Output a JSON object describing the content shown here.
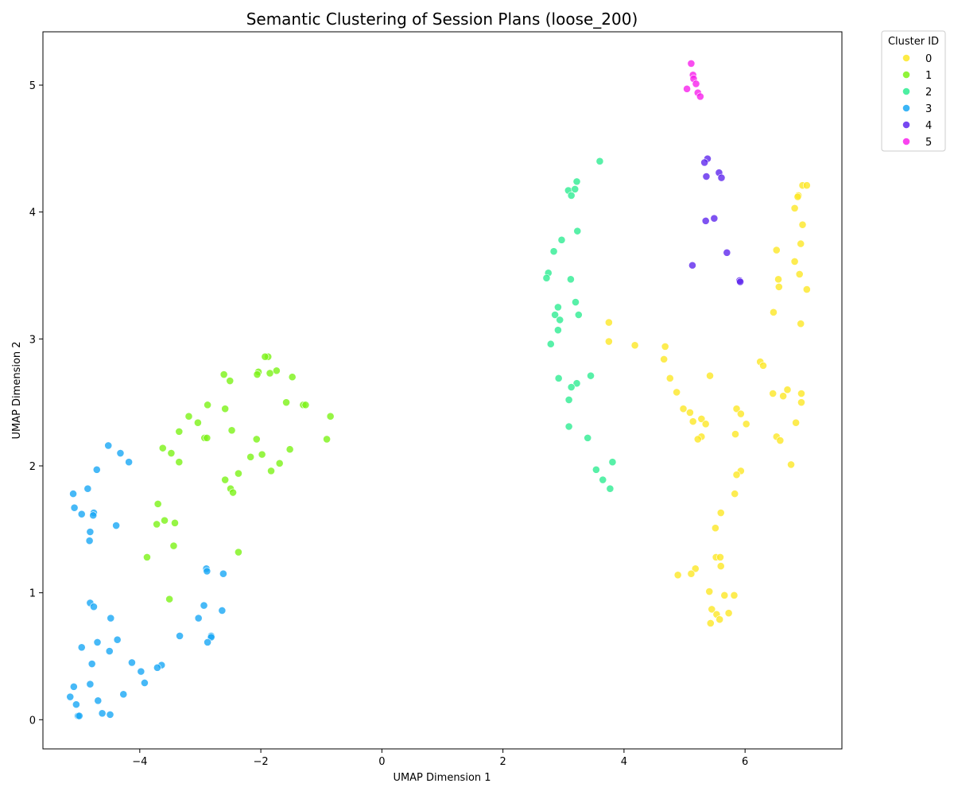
{
  "chart_data": {
    "type": "scatter",
    "title": "Semantic Clustering of Session Plans (loose_200)",
    "xlabel": "UMAP Dimension 1",
    "ylabel": "UMAP Dimension 2",
    "xlim": [
      -5.6,
      7.6
    ],
    "ylim": [
      -0.23,
      5.42
    ],
    "xticks": [
      -4,
      -2,
      0,
      2,
      4,
      6
    ],
    "yticks": [
      0,
      1,
      2,
      3,
      4,
      5
    ],
    "grid": false,
    "legend": {
      "title": "Cluster ID",
      "placement": "outside-top-right"
    },
    "series": [
      {
        "name": "0",
        "color": "#fde725",
        "points": [
          [
            6.95,
            4.21
          ],
          [
            7.02,
            4.21
          ],
          [
            6.88,
            4.13
          ],
          [
            6.87,
            4.12
          ],
          [
            6.82,
            4.03
          ],
          [
            6.95,
            3.9
          ],
          [
            6.92,
            3.75
          ],
          [
            6.52,
            3.7
          ],
          [
            6.82,
            3.61
          ],
          [
            6.9,
            3.51
          ],
          [
            6.55,
            3.47
          ],
          [
            6.56,
            3.41
          ],
          [
            7.02,
            3.39
          ],
          [
            6.47,
            3.21
          ],
          [
            6.92,
            3.12
          ],
          [
            3.75,
            3.13
          ],
          [
            3.75,
            2.98
          ],
          [
            4.18,
            2.95
          ],
          [
            4.68,
            2.94
          ],
          [
            4.66,
            2.84
          ],
          [
            6.25,
            2.82
          ],
          [
            6.3,
            2.79
          ],
          [
            4.76,
            2.69
          ],
          [
            5.42,
            2.71
          ],
          [
            6.7,
            2.6
          ],
          [
            4.87,
            2.58
          ],
          [
            6.93,
            2.57
          ],
          [
            6.46,
            2.57
          ],
          [
            6.63,
            2.55
          ],
          [
            6.93,
            2.5
          ],
          [
            5.86,
            2.45
          ],
          [
            4.98,
            2.45
          ],
          [
            5.09,
            2.42
          ],
          [
            5.93,
            2.41
          ],
          [
            5.14,
            2.35
          ],
          [
            5.28,
            2.37
          ],
          [
            6.84,
            2.34
          ],
          [
            5.35,
            2.33
          ],
          [
            6.02,
            2.33
          ],
          [
            5.84,
            2.25
          ],
          [
            5.28,
            2.23
          ],
          [
            5.22,
            2.21
          ],
          [
            6.52,
            2.23
          ],
          [
            6.58,
            2.2
          ],
          [
            6.76,
            2.01
          ],
          [
            5.93,
            1.96
          ],
          [
            5.86,
            1.93
          ],
          [
            5.83,
            1.78
          ],
          [
            5.6,
            1.63
          ],
          [
            5.51,
            1.51
          ],
          [
            5.52,
            1.28
          ],
          [
            5.59,
            1.28
          ],
          [
            5.6,
            1.21
          ],
          [
            5.18,
            1.19
          ],
          [
            5.11,
            1.15
          ],
          [
            4.89,
            1.14
          ],
          [
            5.41,
            1.01
          ],
          [
            5.66,
            0.98
          ],
          [
            5.82,
            0.98
          ],
          [
            5.45,
            0.87
          ],
          [
            5.53,
            0.83
          ],
          [
            5.73,
            0.84
          ],
          [
            5.58,
            0.79
          ],
          [
            5.43,
            0.76
          ]
        ]
      },
      {
        "name": "1",
        "color": "#7cf216",
        "points": [
          [
            -1.88,
            2.86
          ],
          [
            -1.93,
            2.86
          ],
          [
            -1.74,
            2.75
          ],
          [
            -1.85,
            2.73
          ],
          [
            -2.04,
            2.74
          ],
          [
            -2.06,
            2.72
          ],
          [
            -2.61,
            2.72
          ],
          [
            -1.48,
            2.7
          ],
          [
            -2.51,
            2.67
          ],
          [
            -1.58,
            2.5
          ],
          [
            -1.3,
            2.48
          ],
          [
            -1.26,
            2.48
          ],
          [
            -2.88,
            2.48
          ],
          [
            -0.85,
            2.39
          ],
          [
            -3.19,
            2.39
          ],
          [
            -2.59,
            2.45
          ],
          [
            -3.04,
            2.34
          ],
          [
            -3.35,
            2.27
          ],
          [
            -2.48,
            2.28
          ],
          [
            -2.93,
            2.22
          ],
          [
            -2.89,
            2.22
          ],
          [
            -2.07,
            2.21
          ],
          [
            -0.91,
            2.21
          ],
          [
            -3.62,
            2.14
          ],
          [
            -1.52,
            2.13
          ],
          [
            -3.48,
            2.1
          ],
          [
            -1.98,
            2.09
          ],
          [
            -2.17,
            2.07
          ],
          [
            -3.35,
            2.03
          ],
          [
            -1.69,
            2.02
          ],
          [
            -1.83,
            1.96
          ],
          [
            -2.37,
            1.94
          ],
          [
            -2.59,
            1.89
          ],
          [
            -2.5,
            1.82
          ],
          [
            -2.46,
            1.79
          ],
          [
            -3.7,
            1.7
          ],
          [
            -3.59,
            1.57
          ],
          [
            -3.42,
            1.55
          ],
          [
            -3.72,
            1.54
          ],
          [
            -3.44,
            1.37
          ],
          [
            -2.37,
            1.32
          ],
          [
            -3.88,
            1.28
          ],
          [
            -3.51,
            0.95
          ]
        ]
      },
      {
        "name": "2",
        "color": "#2eec92",
        "points": [
          [
            3.6,
            4.4
          ],
          [
            3.22,
            4.24
          ],
          [
            3.08,
            4.17
          ],
          [
            3.19,
            4.18
          ],
          [
            3.13,
            4.13
          ],
          [
            2.97,
            3.78
          ],
          [
            3.23,
            3.85
          ],
          [
            2.84,
            3.69
          ],
          [
            2.75,
            3.52
          ],
          [
            2.72,
            3.48
          ],
          [
            3.12,
            3.47
          ],
          [
            3.2,
            3.29
          ],
          [
            2.91,
            3.25
          ],
          [
            2.86,
            3.19
          ],
          [
            3.25,
            3.19
          ],
          [
            2.94,
            3.15
          ],
          [
            2.91,
            3.07
          ],
          [
            2.79,
            2.96
          ],
          [
            2.92,
            2.69
          ],
          [
            3.45,
            2.71
          ],
          [
            3.22,
            2.65
          ],
          [
            3.13,
            2.62
          ],
          [
            3.09,
            2.52
          ],
          [
            3.09,
            2.31
          ],
          [
            3.4,
            2.22
          ],
          [
            3.81,
            2.03
          ],
          [
            3.54,
            1.97
          ],
          [
            3.65,
            1.89
          ],
          [
            3.77,
            1.82
          ]
        ]
      },
      {
        "name": "3",
        "color": "#19a8f5",
        "points": [
          [
            -4.52,
            2.16
          ],
          [
            -4.32,
            2.1
          ],
          [
            -4.18,
            2.03
          ],
          [
            -4.71,
            1.97
          ],
          [
            -4.86,
            1.82
          ],
          [
            -5.1,
            1.78
          ],
          [
            -5.08,
            1.67
          ],
          [
            -4.96,
            1.62
          ],
          [
            -4.76,
            1.63
          ],
          [
            -4.77,
            1.61
          ],
          [
            -4.39,
            1.53
          ],
          [
            -4.82,
            1.48
          ],
          [
            -4.83,
            1.41
          ],
          [
            -2.9,
            1.19
          ],
          [
            -2.89,
            1.17
          ],
          [
            -2.62,
            1.15
          ],
          [
            -4.82,
            0.92
          ],
          [
            -4.76,
            0.89
          ],
          [
            -2.94,
            0.9
          ],
          [
            -2.64,
            0.86
          ],
          [
            -4.48,
            0.8
          ],
          [
            -3.03,
            0.8
          ],
          [
            -3.34,
            0.66
          ],
          [
            -2.82,
            0.66
          ],
          [
            -2.82,
            0.65
          ],
          [
            -4.37,
            0.63
          ],
          [
            -4.7,
            0.61
          ],
          [
            -2.88,
            0.61
          ],
          [
            -4.96,
            0.57
          ],
          [
            -4.5,
            0.54
          ],
          [
            -4.13,
            0.45
          ],
          [
            -4.79,
            0.44
          ],
          [
            -3.64,
            0.43
          ],
          [
            -3.71,
            0.41
          ],
          [
            -3.98,
            0.38
          ],
          [
            -3.92,
            0.29
          ],
          [
            -5.09,
            0.26
          ],
          [
            -4.82,
            0.28
          ],
          [
            -4.27,
            0.2
          ],
          [
            -5.15,
            0.18
          ],
          [
            -4.69,
            0.15
          ],
          [
            -5.05,
            0.12
          ],
          [
            -4.62,
            0.05
          ],
          [
            -4.49,
            0.04
          ],
          [
            -5.02,
            0.03
          ],
          [
            -5.0,
            0.03
          ]
        ]
      },
      {
        "name": "4",
        "color": "#5f28ee",
        "points": [
          [
            5.38,
            4.42
          ],
          [
            5.33,
            4.39
          ],
          [
            5.57,
            4.31
          ],
          [
            5.61,
            4.27
          ],
          [
            5.36,
            4.28
          ],
          [
            5.49,
            3.95
          ],
          [
            5.35,
            3.93
          ],
          [
            5.7,
            3.68
          ],
          [
            5.13,
            3.58
          ],
          [
            5.91,
            3.46
          ],
          [
            5.92,
            3.45
          ]
        ]
      },
      {
        "name": "5",
        "color": "#f822ec",
        "points": [
          [
            5.11,
            5.17
          ],
          [
            5.14,
            5.08
          ],
          [
            5.15,
            5.05
          ],
          [
            5.19,
            5.01
          ],
          [
            5.04,
            4.97
          ],
          [
            5.22,
            4.94
          ],
          [
            5.26,
            4.91
          ]
        ]
      }
    ]
  }
}
